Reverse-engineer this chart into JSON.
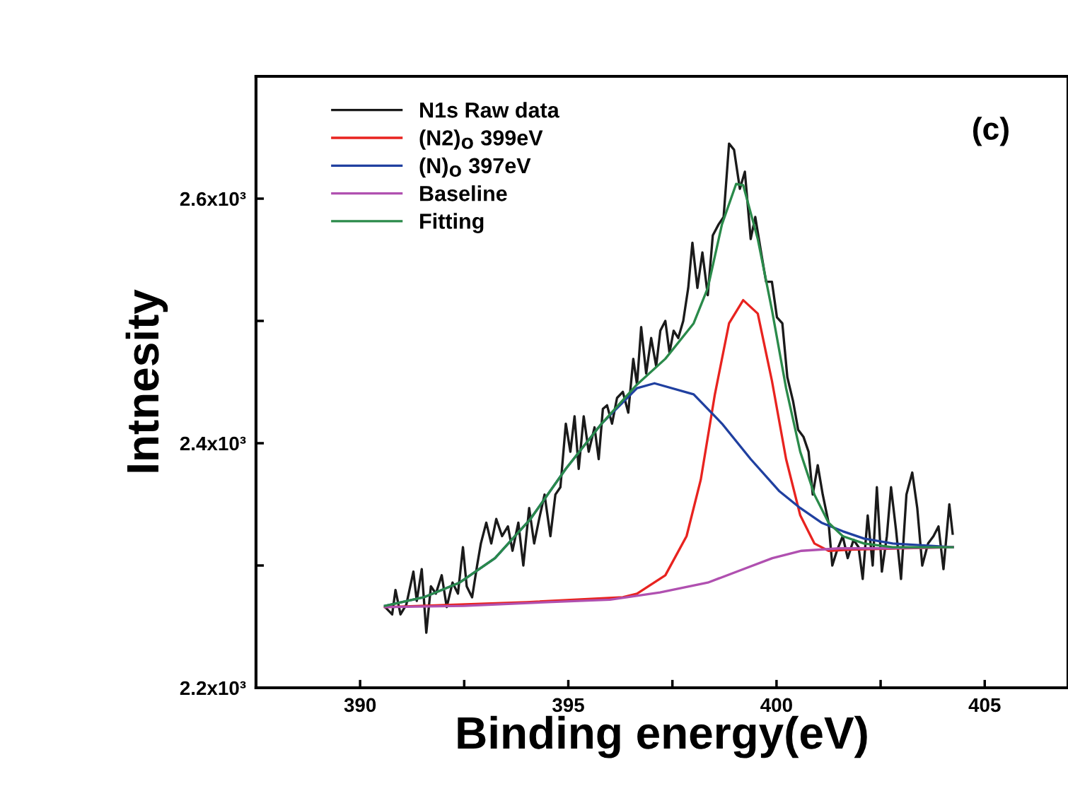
{
  "chart_data": {
    "type": "line",
    "xlabel": "Binding energy(eV)",
    "ylabel": "Intnesity",
    "annotations": [
      "(c)"
    ],
    "xlim": [
      387.5,
      407
    ],
    "ylim": [
      2200,
      2700
    ],
    "xticks": [
      390,
      {
        "value": 392.5,
        "label": null
      },
      395,
      {
        "value": 397.5,
        "label": null
      },
      400,
      {
        "value": 402.5,
        "label": null
      },
      405
    ],
    "yticks": [
      {
        "value": 2200,
        "label": "2.2x10³"
      },
      {
        "value": 2300,
        "label": null
      },
      {
        "value": 2400,
        "label": "2.4x10³"
      },
      {
        "value": 2500,
        "label": null
      },
      {
        "value": 2600,
        "label": "2.6x10³"
      }
    ],
    "legend": "top left",
    "grid": false,
    "marker": "none",
    "line_style": "solid",
    "series": [
      {
        "name": "N1s Raw data",
        "color": "#1a1a1a",
        "x": [
          390.6,
          390.77,
          390.85,
          390.97,
          391.11,
          391.28,
          391.36,
          391.48,
          391.59,
          391.7,
          391.82,
          391.96,
          392.08,
          392.22,
          392.35,
          392.47,
          392.56,
          392.69,
          392.81,
          392.9,
          393.03,
          393.15,
          393.27,
          393.41,
          393.55,
          393.66,
          393.8,
          393.92,
          394.06,
          394.18,
          394.3,
          394.43,
          394.57,
          394.69,
          394.81,
          394.94,
          395.05,
          395.15,
          395.25,
          395.37,
          395.49,
          395.63,
          395.73,
          395.83,
          395.93,
          396.05,
          396.17,
          396.31,
          396.44,
          396.56,
          396.65,
          396.75,
          396.87,
          396.99,
          397.11,
          397.21,
          397.33,
          397.43,
          397.53,
          397.64,
          397.76,
          397.88,
          397.98,
          398.1,
          398.22,
          398.35,
          398.47,
          398.61,
          398.73,
          398.86,
          398.98,
          399.12,
          399.24,
          399.38,
          399.49,
          399.63,
          399.75,
          399.89,
          400.01,
          400.14,
          400.26,
          400.4,
          400.52,
          400.65,
          400.77,
          400.87,
          400.99,
          401.11,
          401.25,
          401.34,
          401.45,
          401.59,
          401.71,
          401.85,
          401.97,
          402.07,
          402.19,
          402.31,
          402.41,
          402.53,
          402.65,
          402.75,
          402.87,
          402.99,
          403.12,
          403.26,
          403.38,
          403.5,
          403.64,
          403.77,
          403.89,
          404.01,
          404.15,
          404.23
        ],
        "values": [
          2266,
          2260,
          2280,
          2260,
          2268,
          2295,
          2271,
          2297,
          2245,
          2283,
          2277,
          2292,
          2266,
          2286,
          2277,
          2315,
          2283,
          2274,
          2300,
          2318,
          2335,
          2318,
          2338,
          2324,
          2332,
          2312,
          2335,
          2300,
          2347,
          2318,
          2338,
          2358,
          2324,
          2358,
          2364,
          2416,
          2393,
          2422,
          2379,
          2422,
          2393,
          2413,
          2387,
          2428,
          2431,
          2416,
          2437,
          2442,
          2425,
          2469,
          2448,
          2495,
          2457,
          2486,
          2463,
          2492,
          2500,
          2474,
          2492,
          2486,
          2500,
          2527,
          2564,
          2527,
          2556,
          2521,
          2570,
          2579,
          2585,
          2645,
          2640,
          2608,
          2622,
          2567,
          2585,
          2556,
          2532,
          2532,
          2503,
          2498,
          2454,
          2434,
          2411,
          2405,
          2393,
          2358,
          2382,
          2358,
          2335,
          2300,
          2312,
          2324,
          2306,
          2321,
          2315,
          2289,
          2341,
          2300,
          2364,
          2295,
          2324,
          2364,
          2329,
          2289,
          2358,
          2376,
          2347,
          2300,
          2318,
          2324,
          2332,
          2297,
          2350,
          2326
        ]
      },
      {
        "name": "(N2)$_{O}$ 399eV",
        "color": "#e8231f",
        "x": [
          390.6,
          394.0,
          396.31,
          396.65,
          397.33,
          397.84,
          398.18,
          398.52,
          398.86,
          399.2,
          399.55,
          399.89,
          400.23,
          400.57,
          400.91,
          401.25,
          401.76,
          404.23
        ],
        "values": [
          2266,
          2270,
          2274,
          2277,
          2292,
          2324,
          2370,
          2440,
          2498,
          2517,
          2506,
          2451,
          2387,
          2341,
          2318,
          2312,
          2313,
          2315
        ]
      },
      {
        "name": "(N)$_{O}$ 397eV",
        "color": "#2040a0",
        "x": [
          390.6,
          391.53,
          392.39,
          393.24,
          394.09,
          394.94,
          395.8,
          396.65,
          397.07,
          398.01,
          398.69,
          399.38,
          400.06,
          400.57,
          401.08,
          401.59,
          402.1,
          402.79,
          404.23
        ],
        "values": [
          2267,
          2274,
          2286,
          2306,
          2338,
          2379,
          2416,
          2445,
          2449,
          2440,
          2416,
          2387,
          2361,
          2347,
          2335,
          2328,
          2322,
          2318,
          2315
        ]
      },
      {
        "name": "Baseline",
        "color": "#b050b0",
        "x": [
          390.6,
          392.5,
          394.5,
          396.0,
          397.2,
          398.35,
          399.2,
          399.9,
          400.6,
          401.5,
          402.5,
          404.23
        ],
        "values": [
          2266,
          2267,
          2270,
          2272,
          2278,
          2286,
          2297,
          2306,
          2312,
          2314,
          2314,
          2315
        ]
      },
      {
        "name": "Fitting",
        "color": "#2a8a4a",
        "x": [
          390.6,
          391.53,
          392.39,
          393.24,
          394.09,
          394.94,
          395.8,
          396.65,
          397.33,
          398.01,
          398.35,
          398.69,
          399.03,
          399.2,
          399.55,
          399.89,
          400.23,
          400.57,
          400.91,
          401.25,
          401.59,
          402.1,
          402.79,
          404.23
        ],
        "values": [
          2267,
          2274,
          2286,
          2306,
          2338,
          2379,
          2416,
          2448,
          2469,
          2498,
          2527,
          2579,
          2612,
          2611,
          2567,
          2509,
          2445,
          2393,
          2358,
          2335,
          2324,
          2318,
          2315,
          2315
        ]
      }
    ]
  }
}
